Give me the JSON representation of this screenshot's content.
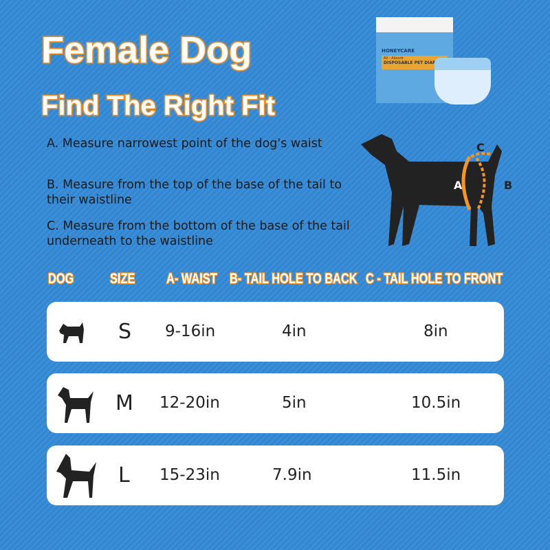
{
  "title": "Female Dog",
  "subtitle": "Find The Right Fit",
  "instructions": [
    "A. Measure narrowest point of the dog's waist",
    "B. Measure from the top of the base of the tail to their waistline",
    "C. Measure from the bottom of the base of the tail underneath to the waistline"
  ],
  "product": {
    "brand": "HONEYCARE",
    "line": "All - Absorb",
    "name": "DISPOSABLE PET DIAPERS"
  },
  "diagram_labels": {
    "a": "A",
    "b": "B",
    "c": "C"
  },
  "table": {
    "headers": [
      "DOG",
      "SIZE",
      "A- WAIST",
      "B- TAIL HOLE TO BACK",
      "C - TAIL HOLE TO FRONT"
    ],
    "rows": [
      {
        "icon": "small-dog-icon",
        "size": "S",
        "waist": "9-16in",
        "back": "4in",
        "front": "8in"
      },
      {
        "icon": "medium-dog-icon",
        "size": "M",
        "waist": "12-20in",
        "back": "5in",
        "front": "10.5in"
      },
      {
        "icon": "large-dog-icon",
        "size": "L",
        "waist": "15-23in",
        "back": "7.9in",
        "front": "11.5in"
      }
    ]
  },
  "colors": {
    "accent": "#f2962b",
    "background": "#3a8fd6"
  }
}
